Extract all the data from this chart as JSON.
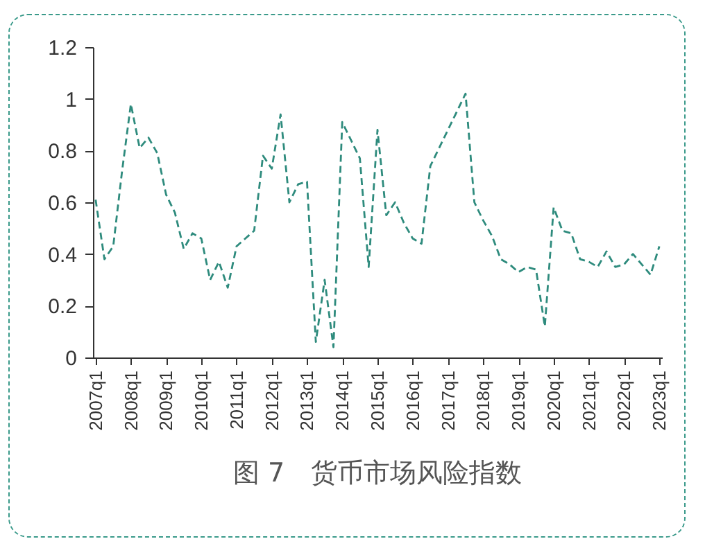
{
  "chart_data": {
    "type": "line",
    "title": "图 7　货币市场风险指数",
    "categories": [
      "2007q1",
      null,
      null,
      null,
      "2008q1",
      null,
      null,
      null,
      "2009q1",
      null,
      null,
      null,
      "2010q1",
      null,
      null,
      null,
      "2011q1",
      null,
      null,
      null,
      "2012q1",
      null,
      null,
      null,
      "2013q1",
      null,
      null,
      null,
      "2014q1",
      null,
      null,
      null,
      "2015q1",
      null,
      null,
      null,
      "2016q1",
      null,
      null,
      null,
      "2017q1",
      null,
      null,
      null,
      "2018q1",
      null,
      null,
      null,
      "2019q1",
      null,
      null,
      null,
      "2020q1",
      null,
      null,
      null,
      "2021q1",
      null,
      null,
      null,
      "2022q1",
      null,
      null,
      null,
      "2023q1"
    ],
    "series": [
      {
        "color": "#2e8b7d",
        "values": [
          0.61,
          0.38,
          0.43,
          0.72,
          0.98,
          0.81,
          0.85,
          0.79,
          0.63,
          0.56,
          0.42,
          0.48,
          0.46,
          0.3,
          0.37,
          0.27,
          0.43,
          0.46,
          0.49,
          0.78,
          0.73,
          0.94,
          0.6,
          0.67,
          0.68,
          0.06,
          0.3,
          0.04,
          0.91,
          0.84,
          0.77,
          0.35,
          0.88,
          0.55,
          0.6,
          0.52,
          0.46,
          0.44,
          0.74,
          0.81,
          0.88,
          0.95,
          1.02,
          0.6,
          0.53,
          0.47,
          0.38,
          0.36,
          0.33,
          0.35,
          0.34,
          0.12,
          0.58,
          0.49,
          0.48,
          0.38,
          0.37,
          0.35,
          0.41,
          0.35,
          0.36,
          0.4,
          0.36,
          0.32,
          0.43
        ]
      }
    ],
    "ylim": [
      0,
      1.2
    ],
    "yticks": [
      0,
      0.2,
      0.4,
      0.6,
      0.8,
      1,
      1.2
    ],
    "grid": false,
    "marker": "none",
    "line_style": "dashed"
  }
}
